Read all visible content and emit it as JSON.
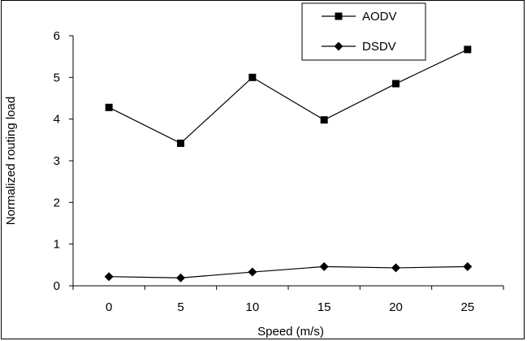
{
  "chart_data": {
    "type": "line",
    "title": "",
    "xlabel": "Speed (m/s)",
    "ylabel": "Normalized routing load",
    "categories": [
      "0",
      "5",
      "10",
      "15",
      "20",
      "25"
    ],
    "ylim": [
      0,
      6
    ],
    "yticks": [
      "0",
      "1",
      "2",
      "3",
      "4",
      "5",
      "6"
    ],
    "grid": false,
    "legend_position": "top-right",
    "series": [
      {
        "name": "AODV",
        "marker": "square",
        "color": "#000000",
        "values": [
          4.28,
          3.42,
          5.0,
          3.98,
          4.85,
          5.67
        ]
      },
      {
        "name": "DSDV",
        "marker": "diamond",
        "color": "#000000",
        "values": [
          0.22,
          0.19,
          0.33,
          0.46,
          0.43,
          0.46
        ]
      }
    ]
  }
}
